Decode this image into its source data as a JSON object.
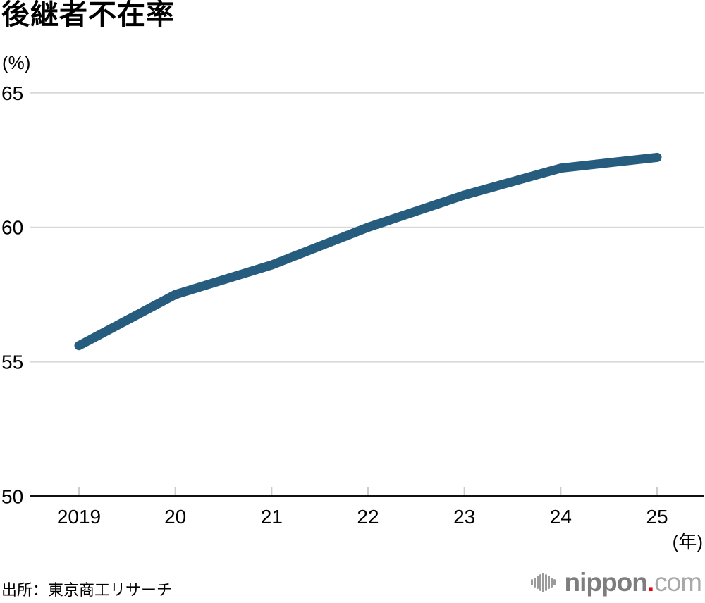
{
  "title": "後継者不在率",
  "y_unit": "(%)",
  "x_unit": "(年)",
  "source": "出所：東京商工リサーチ",
  "logo": {
    "name": "nippon",
    "dot": ".",
    "tld": "com"
  },
  "colors": {
    "line": "#265d7f",
    "grid": "#d9d9d9",
    "axis": "#111111",
    "tick": "#cccccc",
    "text": "#000000",
    "logo_name": "#7d7d7d",
    "logo_dot": "#e60012",
    "logo_tld": "#a8a8a8"
  },
  "chart_data": {
    "type": "line",
    "title": "後継者不在率",
    "x_labels": [
      "2019",
      "20",
      "21",
      "22",
      "23",
      "24",
      "25"
    ],
    "values": [
      55.6,
      57.5,
      58.6,
      60.0,
      61.2,
      62.2,
      62.6
    ],
    "ylabel": "(%)",
    "xlabel": "(年)",
    "yticks": [
      50,
      55,
      60,
      65
    ],
    "ylim": [
      50,
      66
    ],
    "grid": "horizontal",
    "legend": "none",
    "source": "東京商工リサーチ"
  }
}
